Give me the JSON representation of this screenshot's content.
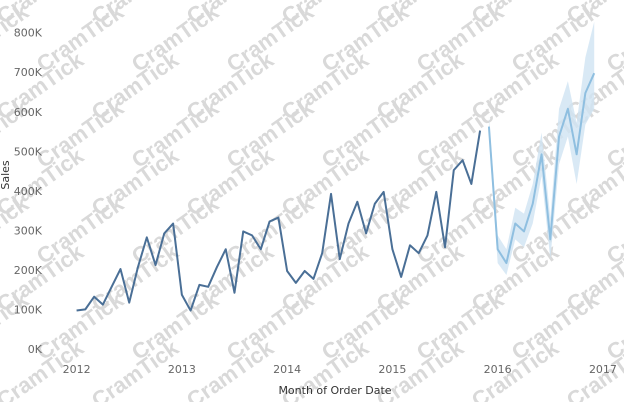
{
  "watermark": "CramTick",
  "chart_data": {
    "type": "line",
    "y_label": "Sales",
    "x_label": "Month of Order Date",
    "xlim": [
      2011.7,
      2017.2
    ],
    "ylim": [
      -25000,
      880000
    ],
    "grid": false,
    "xticks": [
      2012,
      2013,
      2014,
      2015,
      2016,
      2017
    ],
    "yticks": [
      {
        "value": 0,
        "label": "0K"
      },
      {
        "value": 100000,
        "label": "100K"
      },
      {
        "value": 200000,
        "label": "200K"
      },
      {
        "value": 300000,
        "label": "300K"
      },
      {
        "value": 400000,
        "label": "400K"
      },
      {
        "value": 500000,
        "label": "500K"
      },
      {
        "value": 600000,
        "label": "600K"
      },
      {
        "value": 700000,
        "label": "700K"
      },
      {
        "value": 800000,
        "label": "800K"
      }
    ],
    "x": [
      2012,
      2012.083,
      2012.167,
      2012.25,
      2012.333,
      2012.417,
      2012.5,
      2012.583,
      2012.667,
      2012.75,
      2012.833,
      2012.917,
      2013,
      2013.083,
      2013.167,
      2013.25,
      2013.333,
      2013.417,
      2013.5,
      2013.583,
      2013.667,
      2013.75,
      2013.833,
      2013.917,
      2014,
      2014.083,
      2014.167,
      2014.25,
      2014.333,
      2014.417,
      2014.5,
      2014.583,
      2014.667,
      2014.75,
      2014.833,
      2014.917,
      2015,
      2015.083,
      2015.167,
      2015.25,
      2015.333,
      2015.417,
      2015.5,
      2015.583,
      2015.667,
      2015.75,
      2015.833,
      2015.917,
      2016,
      2016.083,
      2016.167,
      2016.25,
      2016.333,
      2016.417,
      2016.5,
      2016.583,
      2016.667,
      2016.75,
      2016.833,
      2016.917
    ],
    "series": [
      {
        "color": "#4a6f96",
        "values": [
          100000,
          103000,
          135000,
          115000,
          160000,
          205000,
          120000,
          210000,
          285000,
          215000,
          295000,
          320000,
          140000,
          100000,
          165000,
          160000,
          210000,
          255000,
          145000,
          300000,
          290000,
          255000,
          325000,
          335000,
          200000,
          170000,
          200000,
          180000,
          245000,
          395000,
          230000,
          320000,
          375000,
          295000,
          370000,
          400000,
          255000,
          185000,
          265000,
          245000,
          290000,
          400000,
          260000,
          455000,
          480000,
          420000,
          555000,
          null,
          null,
          null,
          null,
          null,
          null,
          null,
          null,
          null,
          null,
          null,
          null,
          null
        ]
      },
      {
        "color": "#8fbfe0",
        "values": [
          null,
          null,
          null,
          null,
          null,
          null,
          null,
          null,
          null,
          null,
          null,
          null,
          null,
          null,
          null,
          null,
          null,
          null,
          null,
          null,
          null,
          null,
          null,
          null,
          null,
          null,
          null,
          null,
          null,
          null,
          null,
          null,
          null,
          null,
          null,
          null,
          null,
          null,
          null,
          null,
          null,
          null,
          null,
          null,
          null,
          null,
          null,
          565000,
          255000,
          220000,
          320000,
          300000,
          370000,
          495000,
          280000,
          540000,
          610000,
          495000,
          650000,
          700000
        ]
      }
    ],
    "band": {
      "color": "#cfe4f3",
      "lower": [
        null,
        null,
        null,
        null,
        null,
        null,
        null,
        null,
        null,
        null,
        null,
        null,
        null,
        null,
        null,
        null,
        null,
        null,
        null,
        null,
        null,
        null,
        null,
        null,
        null,
        null,
        null,
        null,
        null,
        null,
        null,
        null,
        null,
        null,
        null,
        null,
        null,
        null,
        null,
        null,
        null,
        null,
        null,
        null,
        null,
        null,
        null,
        540000,
        220000,
        190000,
        280000,
        260000,
        320000,
        440000,
        230000,
        470000,
        540000,
        420000,
        570000,
        610000
      ],
      "upper": [
        null,
        null,
        null,
        null,
        null,
        null,
        null,
        null,
        null,
        null,
        null,
        null,
        null,
        null,
        null,
        null,
        null,
        null,
        null,
        null,
        null,
        null,
        null,
        null,
        null,
        null,
        null,
        null,
        null,
        null,
        null,
        null,
        null,
        null,
        null,
        null,
        null,
        null,
        null,
        null,
        null,
        null,
        null,
        null,
        null,
        null,
        null,
        590000,
        290000,
        255000,
        360000,
        345000,
        420000,
        550000,
        335000,
        610000,
        680000,
        575000,
        740000,
        830000
      ]
    }
  }
}
